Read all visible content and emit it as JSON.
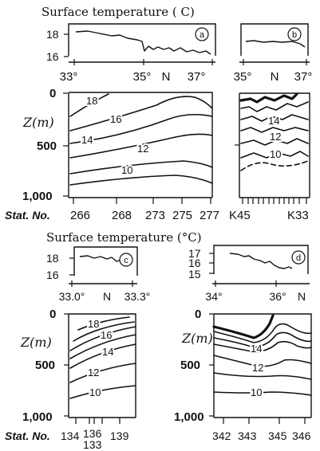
{
  "figure": {
    "title_top": "Surface temperature ( C)",
    "title_bottom": "Surface temperature (°C)",
    "depth_label": "Z(m)",
    "stat_label": "Stat. No."
  },
  "panels": [
    {
      "id": "a",
      "badge": "a",
      "surface_ticks": [
        "18",
        "16"
      ],
      "lon_ticks": [
        "33°",
        "35°",
        "N",
        "37°"
      ],
      "depth_ticks": [
        "0",
        "500",
        "1,000"
      ],
      "contour_labels": [
        "18",
        "16",
        "14",
        "12",
        "10"
      ],
      "stations": [
        "266",
        "268",
        "273",
        "275",
        "277"
      ]
    },
    {
      "id": "b",
      "badge": "b",
      "lon_ticks": [
        "35°",
        "N",
        "37°"
      ],
      "contour_labels": [
        "14",
        "12",
        "10"
      ],
      "stations": [
        "K45",
        "K33"
      ]
    },
    {
      "id": "c",
      "badge": "c",
      "surface_ticks": [
        "18",
        "16"
      ],
      "lon_ticks": [
        "33.0°",
        "N",
        "33.3°"
      ],
      "depth_ticks": [
        "0",
        "500",
        "1,000"
      ],
      "contour_labels": [
        "18",
        "16",
        "14",
        "12",
        "10"
      ],
      "stations": [
        "134",
        "136",
        "133",
        "139"
      ]
    },
    {
      "id": "d",
      "badge": "d",
      "surface_ticks": [
        "17",
        "16",
        "15"
      ],
      "lon_ticks": [
        "34°",
        "36°",
        "N"
      ],
      "depth_ticks": [
        "0",
        "500",
        "1,000"
      ],
      "contour_labels": [
        "14",
        "12",
        "10"
      ],
      "stations": [
        "342",
        "343",
        "345",
        "346"
      ]
    }
  ]
}
